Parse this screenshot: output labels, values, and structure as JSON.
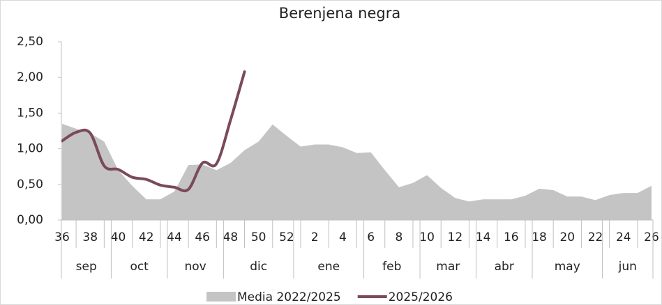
{
  "chart_data": {
    "type": "area-line",
    "title": "Berenjena negra",
    "categories": [
      36,
      null,
      38,
      null,
      40,
      null,
      42,
      null,
      44,
      null,
      46,
      null,
      48,
      null,
      50,
      null,
      52,
      null,
      2,
      null,
      4,
      null,
      6,
      null,
      8,
      null,
      10,
      null,
      12,
      null,
      14,
      null,
      16,
      null,
      18,
      null,
      20,
      null,
      22,
      null,
      24,
      null,
      26
    ],
    "months": [
      {
        "label": "sep",
        "weeks": 4
      },
      {
        "label": "oct",
        "weeks": 4
      },
      {
        "label": "nov",
        "weeks": 4
      },
      {
        "label": "dic",
        "weeks": 5
      },
      {
        "label": "ene",
        "weeks": 5
      },
      {
        "label": "feb",
        "weeks": 4
      },
      {
        "label": "mar",
        "weeks": 4
      },
      {
        "label": "abr",
        "weeks": 4
      },
      {
        "label": "may",
        "weeks": 5
      },
      {
        "label": "jun",
        "weeks": 4
      }
    ],
    "series": [
      {
        "name": "Media 2022/2025",
        "kind": "area",
        "color": "#c4c4c4",
        "values": [
          1.35,
          1.28,
          1.22,
          1.1,
          0.7,
          0.48,
          0.29,
          0.29,
          0.4,
          0.77,
          0.78,
          0.7,
          0.8,
          0.98,
          1.1,
          1.34,
          1.18,
          1.03,
          1.06,
          1.06,
          1.02,
          0.94,
          0.95,
          0.7,
          0.46,
          0.52,
          0.63,
          0.45,
          0.31,
          0.26,
          0.29,
          0.29,
          0.29,
          0.34,
          0.44,
          0.42,
          0.33,
          0.33,
          0.28,
          0.35,
          0.38,
          0.38,
          0.48
        ]
      },
      {
        "name": "2025/2026",
        "kind": "line",
        "color": "#7b4a5a",
        "values": [
          1.11,
          1.23,
          1.22,
          0.76,
          0.71,
          0.6,
          0.57,
          0.49,
          0.46,
          0.43,
          0.8,
          0.79,
          1.4,
          2.08,
          null,
          null,
          null,
          null,
          null,
          null,
          null,
          null,
          null,
          null,
          null,
          null,
          null,
          null,
          null,
          null,
          null,
          null,
          null,
          null,
          null,
          null,
          null,
          null,
          null,
          null,
          null,
          null,
          null
        ]
      }
    ],
    "ylim": [
      0,
      2.5
    ],
    "yticks": [
      {
        "value": 0,
        "label": "0,00"
      },
      {
        "value": 0.5,
        "label": "0,50"
      },
      {
        "value": 1,
        "label": "1,00"
      },
      {
        "value": 1.5,
        "label": "1,50"
      },
      {
        "value": 2,
        "label": "2,00"
      },
      {
        "value": 2.5,
        "label": "2,50"
      }
    ],
    "legend": "bottom"
  }
}
